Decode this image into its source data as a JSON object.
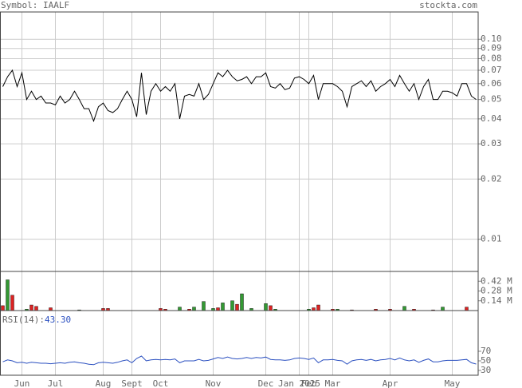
{
  "header": {
    "symbol": "Symbol: IAALF",
    "site": "stockta.com"
  },
  "chart_data": [
    {
      "type": "line",
      "log": true,
      "color": "#000000",
      "grid": true,
      "categories": [
        null,
        null,
        null,
        null,
        "Jun",
        null,
        null,
        null,
        null,
        null,
        null,
        "Jul",
        null,
        null,
        null,
        null,
        null,
        null,
        null,
        null,
        null,
        "Aug",
        null,
        null,
        null,
        null,
        null,
        "Sept",
        null,
        null,
        null,
        null,
        null,
        "Oct",
        null,
        null,
        null,
        null,
        null,
        null,
        null,
        null,
        null,
        null,
        "Nov",
        null,
        null,
        null,
        null,
        null,
        null,
        null,
        null,
        null,
        null,
        "Dec",
        null,
        null,
        null,
        null,
        null,
        null,
        "Jan 2025",
        null,
        "Feb",
        null,
        null,
        null,
        null,
        "Mar",
        null,
        null,
        null,
        null,
        null,
        null,
        null,
        null,
        null,
        null,
        null,
        "Apr",
        null,
        null,
        null,
        null,
        null,
        null,
        null,
        null,
        null,
        null,
        null,
        null,
        "May",
        null,
        null,
        null,
        null,
        null
      ],
      "values": [
        0.058,
        0.065,
        0.07,
        0.058,
        0.068,
        0.05,
        0.055,
        0.05,
        0.052,
        0.048,
        0.048,
        0.047,
        0.052,
        0.048,
        0.05,
        0.055,
        0.05,
        0.045,
        0.045,
        0.039,
        0.046,
        0.048,
        0.044,
        0.043,
        0.045,
        0.05,
        0.055,
        0.05,
        0.041,
        0.068,
        0.042,
        0.055,
        0.06,
        0.055,
        0.058,
        0.055,
        0.06,
        0.04,
        0.052,
        0.053,
        0.052,
        0.06,
        0.05,
        0.053,
        0.06,
        0.068,
        0.065,
        0.07,
        0.065,
        0.062,
        0.063,
        0.065,
        0.06,
        0.065,
        0.065,
        0.068,
        0.058,
        0.057,
        0.06,
        0.056,
        0.057,
        0.064,
        0.065,
        0.063,
        0.06,
        0.066,
        0.05,
        0.06,
        0.06,
        0.06,
        0.058,
        0.055,
        0.046,
        0.058,
        0.06,
        0.062,
        0.058,
        0.062,
        0.055,
        0.058,
        0.06,
        0.063,
        0.058,
        0.066,
        0.06,
        0.055,
        0.06,
        0.05,
        0.058,
        0.063,
        0.05,
        0.05,
        0.055,
        0.055,
        0.054,
        0.052,
        0.06,
        0.06,
        0.052,
        0.05
      ],
      "ylim": [
        0.0069,
        0.137
      ],
      "yticks": [
        {
          "value": 0.1,
          "label": "0.10"
        },
        0.09,
        0.08,
        0.07,
        0.06,
        0.05,
        0.04,
        0.03,
        0.02,
        0.01
      ]
    },
    {
      "type": "bar",
      "values": [
        0.07,
        0.44,
        0.22,
        0,
        0,
        0.02,
        0.08,
        0.06,
        0,
        0,
        0.04,
        0,
        0,
        0,
        0,
        0,
        0.01,
        0,
        0,
        0,
        0,
        0.03,
        0.03,
        0,
        0,
        0,
        0,
        0,
        0,
        0,
        0,
        0,
        0,
        0.03,
        0.02,
        0,
        0,
        0.05,
        0,
        0.02,
        0.05,
        0,
        0.13,
        0,
        0.03,
        0.04,
        0.11,
        0,
        0.14,
        0.09,
        0.24,
        0,
        0.03,
        0,
        0,
        0.1,
        0.07,
        0.02,
        0,
        0,
        0,
        0,
        0,
        0,
        0.02,
        0.04,
        0.08,
        0,
        0,
        0.02,
        0.02,
        0,
        0,
        0.01,
        0,
        0,
        0,
        0,
        0.02,
        0,
        0,
        0.02,
        0,
        0,
        0.06,
        0,
        0.02,
        0,
        0,
        0,
        0.01,
        0,
        0.05,
        0,
        0,
        0,
        0,
        0.05,
        0,
        0
      ],
      "colors": [
        "#d22",
        "#393",
        "#d22",
        "#d22",
        "#d22",
        "#393",
        "#d22",
        "#d22",
        "#d22",
        "#d22",
        "#d22",
        "#d22",
        "#d22",
        "#d22",
        "#d22",
        "#d22",
        "#393",
        "#d22",
        "#d22",
        "#d22",
        "#d22",
        "#d22",
        "#d22",
        "#d22",
        "#d22",
        "#d22",
        "#d22",
        "#d22",
        "#d22",
        "#d22",
        "#d22",
        "#d22",
        "#d22",
        "#d22",
        "#d22",
        "#d22",
        "#d22",
        "#393",
        "#d22",
        "#d22",
        "#393",
        "#d22",
        "#393",
        "#d22",
        "#393",
        "#d22",
        "#393",
        "#d22",
        "#393",
        "#d22",
        "#393",
        "#d22",
        "#393",
        "#d22",
        "#d22",
        "#393",
        "#d22",
        "#393",
        "#d22",
        "#d22",
        "#d22",
        "#d22",
        "#d22",
        "#d22",
        "#393",
        "#d22",
        "#d22",
        "#d22",
        "#d22",
        "#d22",
        "#393",
        "#d22",
        "#d22",
        "#d22",
        "#d22",
        "#d22",
        "#d22",
        "#d22",
        "#d22",
        "#d22",
        "#d22",
        "#d22",
        "#d22",
        "#d22",
        "#393",
        "#d22",
        "#d22",
        "#d22",
        "#d22",
        "#d22",
        "#d22",
        "#d22",
        "#393",
        "#d22",
        "#d22",
        "#d22",
        "#d22",
        "#d22",
        "#d22",
        "#d22"
      ],
      "ylim": [
        0,
        0.56
      ],
      "yticks": [
        {
          "value": 0.42,
          "label": "0.42 M"
        },
        {
          "value": 0.28,
          "label": "0.28 M"
        },
        {
          "value": 0.14,
          "label": "0.14 M"
        }
      ]
    },
    {
      "type": "line",
      "color": "#2b50c0",
      "title": "RSI(14):",
      "current": {
        "value": 43.3,
        "label": "43.30"
      },
      "values": [
        48,
        52,
        50,
        46,
        47,
        45,
        47,
        46,
        45,
        45,
        44,
        45,
        46,
        45,
        47,
        48,
        46,
        45,
        43,
        42,
        46,
        47,
        46,
        45,
        47,
        50,
        52,
        46,
        55,
        60,
        50,
        52,
        53,
        52,
        53,
        52,
        54,
        46,
        50,
        50,
        50,
        53,
        50,
        51,
        54,
        57,
        55,
        58,
        55,
        54,
        55,
        57,
        55,
        57,
        56,
        58,
        53,
        52,
        52,
        51,
        52,
        55,
        56,
        55,
        53,
        56,
        46,
        52,
        52,
        53,
        51,
        50,
        43,
        50,
        52,
        53,
        51,
        53,
        50,
        52,
        53,
        55,
        52,
        56,
        52,
        50,
        52,
        47,
        51,
        54,
        48,
        48,
        50,
        51,
        51,
        51,
        52,
        53,
        46,
        43.3
      ],
      "ylim": [
        20,
        155
      ],
      "yticks": [
        70,
        50,
        30
      ]
    }
  ]
}
